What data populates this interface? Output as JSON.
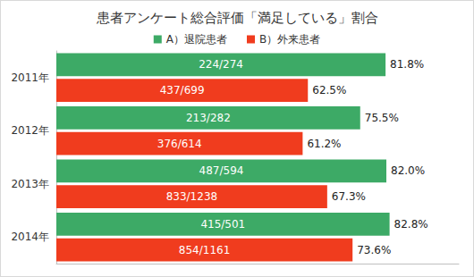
{
  "chart_data": {
    "type": "bar",
    "title": "患者アンケート総合評価「満足している」割合",
    "orientation": "horizontal",
    "categories": [
      "2011年",
      "2012年",
      "2013年",
      "2014年"
    ],
    "series": [
      {
        "name": "A）退院患者",
        "color": "#3daa66",
        "values": [
          81.8,
          75.5,
          82.0,
          82.8
        ],
        "value_labels": [
          "81.8%",
          "75.5%",
          "82.0%",
          "82.8%"
        ],
        "inner_labels": [
          "224/274",
          "213/282",
          "487/594",
          "415/501"
        ]
      },
      {
        "name": "B）外来患者",
        "color": "#f03c1e",
        "values": [
          62.5,
          61.2,
          67.3,
          73.6
        ],
        "value_labels": [
          "62.5%",
          "61.2%",
          "67.3%",
          "73.6%"
        ],
        "inner_labels": [
          "437/699",
          "376/614",
          "833/1238",
          "854/1161"
        ]
      }
    ],
    "xlim": [
      0,
      100
    ],
    "grid": false,
    "legend": "top",
    "data_labels": true,
    "tick_labels": "y"
  }
}
